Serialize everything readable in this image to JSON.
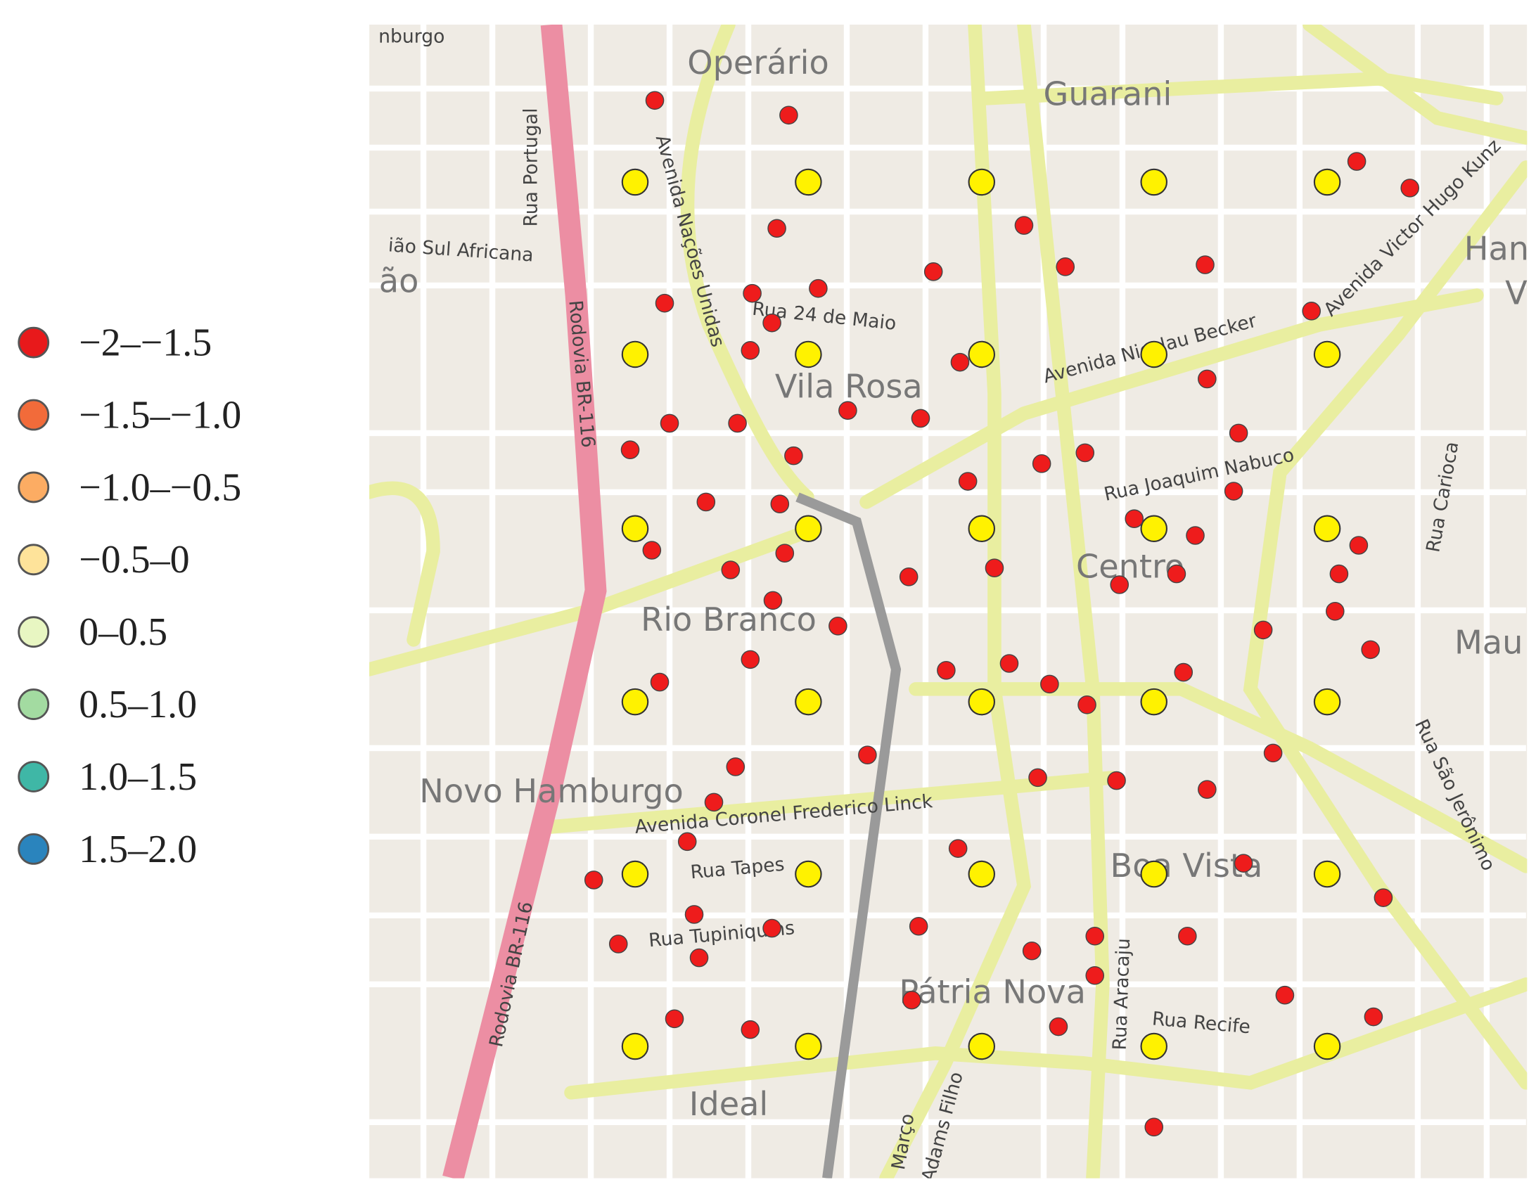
{
  "legend": {
    "items": [
      {
        "label": "−2–−1.5",
        "color": "#e8191b"
      },
      {
        "label": "−1.5–−1.0",
        "color": "#f26b3a"
      },
      {
        "label": "−1.0–−0.5",
        "color": "#fcac63"
      },
      {
        "label": "−0.5–0",
        "color": "#fee39a"
      },
      {
        "label": "0–0.5",
        "color": "#e8f6c2"
      },
      {
        "label": "0.5–1.0",
        "color": "#a3dba1"
      },
      {
        "label": "1.0–1.5",
        "color": "#3fb7a6"
      },
      {
        "label": "1.5–2.0",
        "color": "#2a84bd"
      }
    ]
  },
  "map": {
    "places": [
      "Operário",
      "Guarani",
      "Vila Rosa",
      "Centro",
      "Rio Branco",
      "Novo Hamburgo",
      "Boa Vista",
      "Pátria Nova",
      "Ideal",
      "Mau",
      "Han",
      "V",
      "ão"
    ],
    "streets": [
      "nburgo",
      "Avenida Nações Unidas",
      "Rua Portugal",
      "ião Sul Africana",
      "Rodovia BR-116",
      "Rua 24 de Maio",
      "Avenida Nicolau Becker",
      "Avenida Victor Hugo Kunz",
      "Rua Joaquim Nabuco",
      "Rua Carioca",
      "Avenida Coronel Frederico Linck",
      "Rua Tapes",
      "Rua Tupiniquins",
      "Rodovia BR-116",
      "Rua Aracaju",
      "Rua Recife",
      "Rua São Jerônimo",
      "Março",
      "Adams Filho"
    ]
  }
}
